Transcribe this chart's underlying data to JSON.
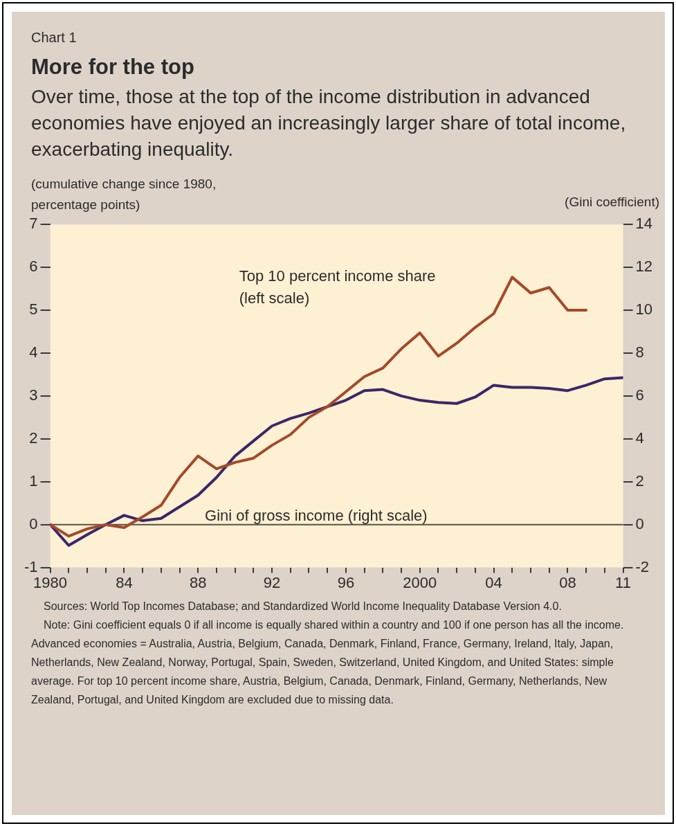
{
  "chart_data": {
    "type": "line",
    "title": "More for the top",
    "subtitle": "Over time, those at the top of the income distribution in advanced economies have enjoyed an increasingly larger share of total income, exacerbating inequality.",
    "ylabel": "(cumulative change since 1980, percentage points)",
    "y2label": "(Gini coefficient)",
    "annotations": [
      "Chart 1",
      "Sources: World Top Incomes Database; and Standardized World Income Inequality Database Version 4.0.",
      "Note: Gini coefficient equals 0 if all income is equally shared within a country and 100 if one person has all the income. Advanced economies = Australia, Austria, Belgium, Canada, Denmark, Finland, France, Germany, Ireland, Italy, Japan, Netherlands, New Zealand, Norway, Portugal, Spain, Sweden, Switzerland, United Kingdom, and United States: simple average. For top 10 percent income share, Austria, Belgium, Canada, Denmark, Finland, Germany, Netherlands, New Zealand, Portugal, and United Kingdom are excluded due to missing data."
    ],
    "x": [
      1980,
      1981,
      1982,
      1983,
      1984,
      1985,
      1986,
      1987,
      1988,
      1989,
      1990,
      1991,
      1992,
      1993,
      1994,
      1995,
      1996,
      1997,
      1998,
      1999,
      2000,
      2001,
      2002,
      2003,
      2004,
      2005,
      2006,
      2007,
      2008,
      2009,
      2010,
      2011
    ],
    "series": [
      {
        "name": "Top 10 percent income share (left scale)",
        "color": "#a4492b",
        "values": [
          0,
          -0.27,
          -0.1,
          0,
          -0.07,
          0.18,
          0.45,
          1.1,
          1.6,
          1.3,
          1.45,
          1.55,
          1.85,
          2.1,
          2.5,
          2.75,
          3.1,
          3.45,
          3.65,
          4.1,
          4.47,
          3.93,
          4.23,
          4.6,
          4.92,
          5.77,
          5.4,
          5.53,
          5.0,
          5.0,
          null,
          null
        ]
      },
      {
        "name": "Gini of gross income (right scale)",
        "color": "#3a2768",
        "axis": "y2",
        "values": [
          0,
          -0.97,
          -0.47,
          0,
          0.43,
          0.18,
          0.29,
          0.83,
          1.37,
          2.2,
          3.2,
          3.9,
          4.6,
          4.95,
          5.2,
          5.5,
          5.8,
          6.25,
          6.3,
          6.0,
          5.8,
          5.7,
          5.65,
          5.95,
          6.5,
          6.4,
          6.4,
          6.35,
          6.25,
          6.5,
          6.8,
          6.85
        ]
      }
    ],
    "xlim": [
      1980,
      2011
    ],
    "xticks": [
      1980,
      {
        "value": 1981,
        "label": null
      },
      {
        "value": 1982,
        "label": null
      },
      {
        "value": 1983,
        "label": null
      },
      {
        "value": 1984,
        "label": "84"
      },
      {
        "value": 1985,
        "label": null
      },
      {
        "value": 1986,
        "label": null
      },
      {
        "value": 1987,
        "label": null
      },
      {
        "value": 1988,
        "label": "88"
      },
      {
        "value": 1989,
        "label": null
      },
      {
        "value": 1990,
        "label": null
      },
      {
        "value": 1991,
        "label": null
      },
      {
        "value": 1992,
        "label": "92"
      },
      {
        "value": 1993,
        "label": null
      },
      {
        "value": 1994,
        "label": null
      },
      {
        "value": 1995,
        "label": null
      },
      {
        "value": 1996,
        "label": "96"
      },
      {
        "value": 1997,
        "label": null
      },
      {
        "value": 1998,
        "label": null
      },
      {
        "value": 1999,
        "label": null
      },
      2000,
      {
        "value": 2001,
        "label": null
      },
      {
        "value": 2002,
        "label": null
      },
      {
        "value": 2003,
        "label": null
      },
      {
        "value": 2004,
        "label": "04"
      },
      {
        "value": 2005,
        "label": null
      },
      {
        "value": 2006,
        "label": null
      },
      {
        "value": 2007,
        "label": null
      },
      {
        "value": 2008,
        "label": "08"
      },
      {
        "value": 2009,
        "label": null
      },
      {
        "value": 2010,
        "label": null
      },
      {
        "value": 2011,
        "label": "11"
      }
    ],
    "ylim": [
      -1,
      7
    ],
    "yticks": [
      -1,
      0,
      1,
      2,
      3,
      4,
      5,
      6,
      7
    ],
    "y2lim": [
      -2,
      14
    ],
    "y2ticks": [
      -2,
      0,
      2,
      4,
      6,
      8,
      10,
      12,
      14
    ],
    "ref_lines": [
      {
        "axis": "y",
        "value": 0,
        "color": "#5a5040"
      }
    ],
    "grid": false,
    "legend": false,
    "marker": "none",
    "line_style": "solid"
  }
}
